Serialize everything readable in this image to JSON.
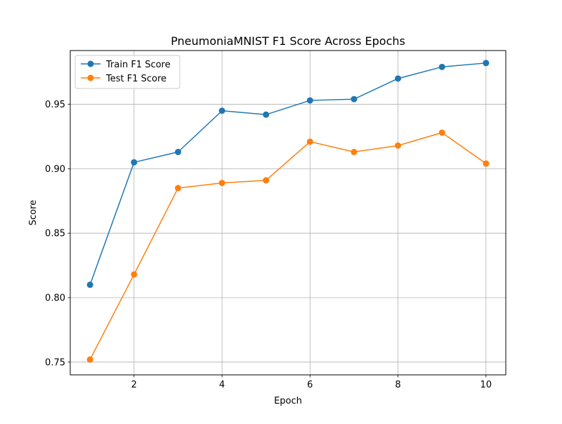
{
  "chart_data": {
    "type": "line",
    "title": "PneumoniaMNIST F1 Score Across Epochs",
    "xlabel": "Epoch",
    "ylabel": "Score",
    "xlim": [
      0.55,
      10.45
    ],
    "ylim": [
      0.7401,
      0.9917
    ],
    "x_ticks": [
      2,
      4,
      6,
      8,
      10
    ],
    "y_ticks": [
      0.75,
      0.8,
      0.85,
      0.9,
      0.95
    ],
    "x_tick_labels": [
      "2",
      "4",
      "6",
      "8",
      "10"
    ],
    "y_tick_labels": [
      "0.75",
      "0.80",
      "0.85",
      "0.90",
      "0.95"
    ],
    "grid": true,
    "legend_position": "top-left",
    "x": [
      1,
      2,
      3,
      4,
      5,
      6,
      7,
      8,
      9,
      10
    ],
    "series": [
      {
        "name": "Train F1 Score",
        "color": "#1f77b4",
        "marker": "circle",
        "values": [
          0.81,
          0.905,
          0.913,
          0.945,
          0.942,
          0.953,
          0.954,
          0.97,
          0.979,
          0.982
        ]
      },
      {
        "name": "Test F1 Score",
        "color": "#ff7f0e",
        "marker": "circle",
        "values": [
          0.752,
          0.818,
          0.885,
          0.889,
          0.891,
          0.921,
          0.913,
          0.918,
          0.928,
          0.904
        ]
      }
    ]
  }
}
